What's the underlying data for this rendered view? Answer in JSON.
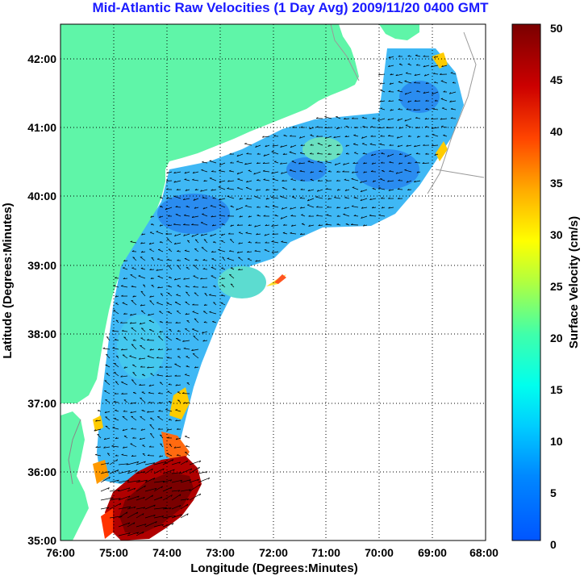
{
  "title": "Mid-Atlantic Raw Velocities (1 Day Avg) 2009/11/20 0400 GMT",
  "colors": {
    "title": "#1a1aff",
    "land": "#5ff5a8",
    "grid": "#000000"
  },
  "chart_data": {
    "type": "heatmap",
    "title": "Mid-Atlantic Raw Velocities (1 Day Avg) 2009/11/20 0400 GMT",
    "xlabel": "Longitude (Degrees:Minutes)",
    "ylabel": "Latitude (Degrees:Minutes)",
    "xlim": [
      -76,
      -68
    ],
    "ylim": [
      35,
      42.5
    ],
    "x_ticks": [
      "76:00",
      "75:00",
      "74:00",
      "73:00",
      "72:00",
      "71:00",
      "70:00",
      "69:00",
      "68:00"
    ],
    "y_ticks": [
      "35:00",
      "36:00",
      "37:00",
      "38:00",
      "39:00",
      "40:00",
      "41:00",
      "42:00"
    ],
    "grid": true,
    "colorbar": {
      "label": "Surface Velocity (cm/s)",
      "min": 0,
      "max": 50,
      "ticks": [
        "0",
        "5",
        "10",
        "15",
        "20",
        "25",
        "30",
        "35",
        "40",
        "45",
        "50"
      ],
      "colormap": "jet"
    }
  }
}
